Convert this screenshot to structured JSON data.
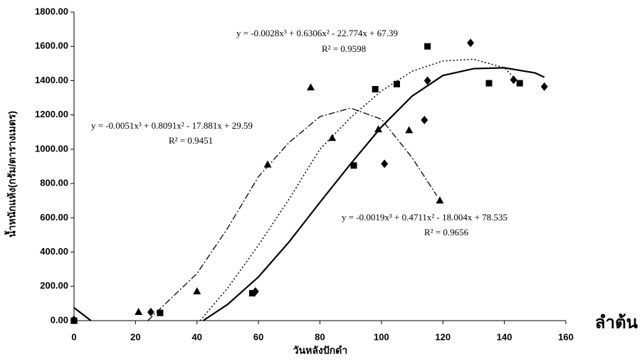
{
  "chart_data": {
    "type": "scatter",
    "y_label": "น้ำหนักแห้ง(กรัม/ตารางเมตร)",
    "x_label": "วันหลังปักดำ",
    "side_label": "ลำต้น",
    "xlim": [
      0,
      160
    ],
    "xticks": [
      0,
      20,
      40,
      60,
      80,
      100,
      120,
      140,
      160
    ],
    "ylim": [
      0,
      1800
    ],
    "yticks": [
      {
        "value": 0,
        "label": "0.00"
      },
      {
        "value": 200,
        "label": "200.00"
      },
      {
        "value": 400,
        "label": "400.00"
      },
      {
        "value": 600,
        "label": "600.00"
      },
      {
        "value": 800,
        "label": "800.00"
      },
      {
        "value": 1000,
        "label": "1000.00"
      },
      {
        "value": 1200,
        "label": "1200.00"
      },
      {
        "value": 1400,
        "label": "1400.00"
      },
      {
        "value": 1600,
        "label": "1600.00"
      },
      {
        "value": 1800,
        "label": "1800.00"
      }
    ],
    "grid": false,
    "annotations": [
      {
        "equation": "y = -0.0028x³ + 0.6306x² - 22.774x + 67.39",
        "r2": "R² = 0.9598"
      },
      {
        "equation": "y = -0.0051x³ + 0.8091x² - 17.881x + 29.59",
        "r2": "R² = 0.9451"
      },
      {
        "equation": "y = -0.0019x³ + 0.4711x² - 18.004x + 78.535",
        "r2": "R² = 0.9656"
      }
    ],
    "series": [
      {
        "marker": "triangle",
        "color": "#000000",
        "x": [
          0,
          21,
          40,
          63,
          77,
          84,
          99,
          109,
          119
        ],
        "values": [
          0,
          50,
          170,
          910,
          1360,
          1065,
          1115,
          1110,
          700
        ],
        "trend": {
          "style": "dashdot",
          "x": [
            24,
            40,
            50,
            60,
            70,
            80,
            90,
            100,
            110,
            118
          ],
          "values": [
            0,
            275,
            540,
            840,
            1040,
            1190,
            1240,
            1175,
            950,
            730
          ]
        }
      },
      {
        "marker": "square",
        "color": "#000000",
        "x": [
          0,
          28,
          58,
          91,
          98,
          105,
          115,
          135,
          145
        ],
        "values": [
          0,
          45,
          160,
          905,
          1350,
          1380,
          1600,
          1385,
          1385
        ],
        "trend": {
          "style": "dotted",
          "x": [
            41,
            50,
            60,
            70,
            80,
            90,
            100,
            110,
            120,
            130,
            140,
            143
          ],
          "values": [
            0,
            190,
            440,
            710,
            1000,
            1185,
            1340,
            1455,
            1515,
            1525,
            1475,
            1420
          ]
        }
      },
      {
        "marker": "diamond",
        "color": "#000000",
        "x": [
          0,
          25,
          59,
          101,
          114,
          115,
          129,
          143,
          153
        ],
        "values": [
          5,
          50,
          170,
          915,
          1170,
          1400,
          1620,
          1405,
          1365
        ],
        "trend": {
          "style": "solid",
          "x": [
            0,
            5.5,
            null,
            42,
            50,
            60,
            70,
            80,
            90,
            100,
            110,
            120,
            130,
            140,
            150,
            153
          ],
          "values": [
            75,
            0,
            null,
            0,
            95,
            255,
            460,
            690,
            915,
            1130,
            1310,
            1430,
            1470,
            1475,
            1445,
            1420
          ]
        }
      }
    ]
  }
}
